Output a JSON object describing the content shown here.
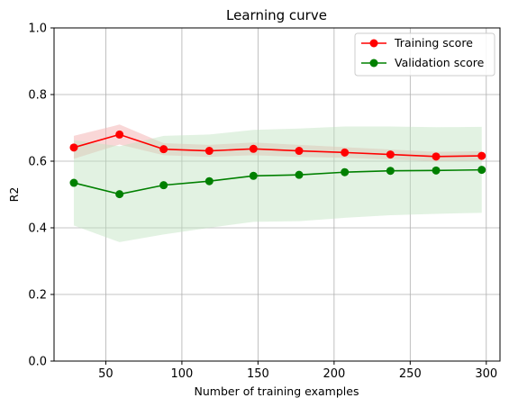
{
  "chart_data": {
    "type": "line",
    "title": "Learning curve",
    "xlabel": "Number of training examples",
    "ylabel": "R2",
    "xlim": [
      16,
      309
    ],
    "ylim": [
      0,
      1
    ],
    "xticks": [
      50,
      100,
      150,
      200,
      250,
      300
    ],
    "yticks": [
      0,
      0.2,
      0.4,
      0.6,
      0.8,
      1.0
    ],
    "ytick_labels": [
      "0.0",
      "0.2",
      "0.4",
      "0.6",
      "0.8",
      "1.0"
    ],
    "grid": true,
    "legend_position": "top-right",
    "x": [
      29,
      59,
      88,
      118,
      147,
      177,
      207,
      237,
      267,
      297
    ],
    "series": [
      {
        "name": "Training score",
        "color": "#ff0000",
        "band_color": "#f4b6b6",
        "values": [
          0.641,
          0.68,
          0.636,
          0.631,
          0.637,
          0.631,
          0.626,
          0.62,
          0.614,
          0.616
        ],
        "lower": [
          0.607,
          0.65,
          0.618,
          0.613,
          0.618,
          0.613,
          0.61,
          0.605,
          0.6,
          0.602
        ],
        "upper": [
          0.676,
          0.71,
          0.654,
          0.649,
          0.656,
          0.649,
          0.642,
          0.635,
          0.628,
          0.63
        ]
      },
      {
        "name": "Validation score",
        "color": "#008000",
        "band_color": "#bfe2bf",
        "values": [
          0.535,
          0.501,
          0.528,
          0.54,
          0.556,
          0.559,
          0.567,
          0.571,
          0.572,
          0.574
        ],
        "lower": [
          0.407,
          0.357,
          0.38,
          0.4,
          0.418,
          0.42,
          0.43,
          0.438,
          0.442,
          0.445
        ],
        "upper": [
          0.663,
          0.645,
          0.676,
          0.68,
          0.694,
          0.698,
          0.704,
          0.704,
          0.702,
          0.703
        ]
      }
    ]
  }
}
